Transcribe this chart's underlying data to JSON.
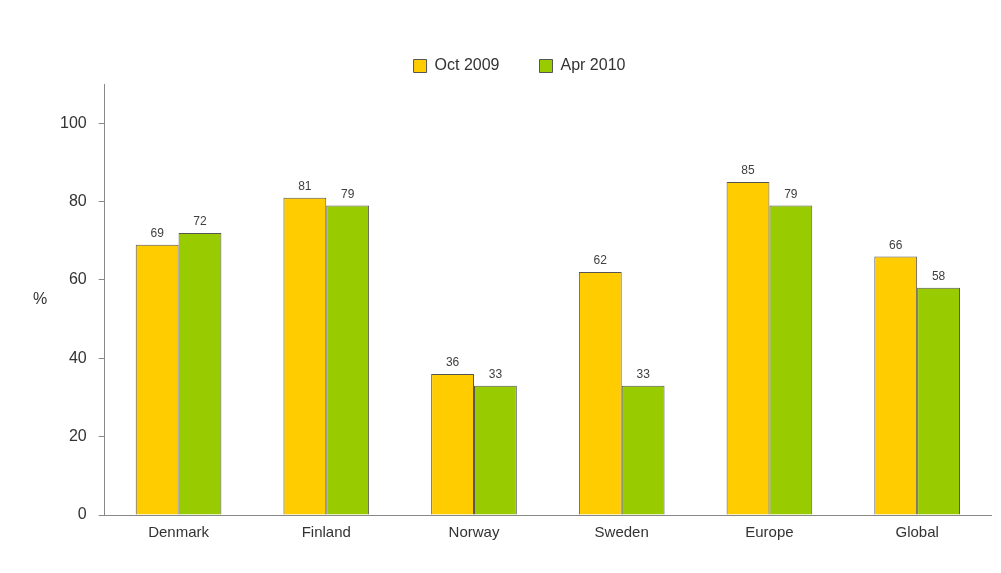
{
  "chart_data": {
    "type": "bar",
    "ylabel": "%",
    "categories": [
      "Denmark",
      "Finland",
      "Norway",
      "Sweden",
      "Europe",
      "Global"
    ],
    "series": [
      {
        "name": "Oct 2009",
        "color": "#ffcc00",
        "values": [
          69,
          81,
          36,
          62,
          85,
          66
        ]
      },
      {
        "name": "Apr 2010",
        "color": "#99cc00",
        "values": [
          72,
          79,
          33,
          33,
          79,
          58
        ]
      }
    ],
    "ylim": [
      0,
      110
    ],
    "yticks": [
      0,
      20,
      40,
      60,
      80,
      100
    ],
    "grid": false,
    "legend": "top",
    "data_labels": true
  }
}
